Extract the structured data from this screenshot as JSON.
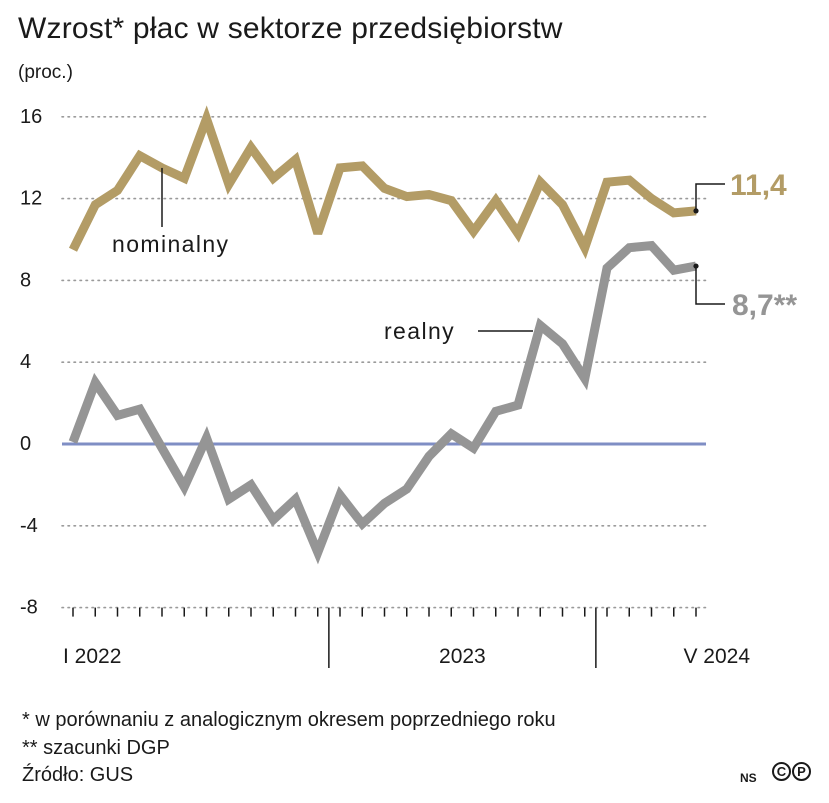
{
  "header": {
    "title": "Wzrost* płac w sektorze przedsiębiorstw",
    "unit": "(proc.)"
  },
  "footnotes": {
    "note1": "* w porównaniu z analogicznym okresem poprzedniego roku",
    "note2": "** szacunki DGP",
    "source": "Źródło: GUS"
  },
  "branding": {
    "ns": "NS",
    "c_symbol": "C",
    "p_symbol": "P"
  },
  "chart_data": {
    "type": "line",
    "x": [
      "2022-01",
      "2022-02",
      "2022-03",
      "2022-04",
      "2022-05",
      "2022-06",
      "2022-07",
      "2022-08",
      "2022-09",
      "2022-10",
      "2022-11",
      "2022-12",
      "2023-01",
      "2023-02",
      "2023-03",
      "2023-04",
      "2023-05",
      "2023-06",
      "2023-07",
      "2023-08",
      "2023-09",
      "2023-10",
      "2023-11",
      "2023-12",
      "2024-01",
      "2024-02",
      "2024-03",
      "2024-04",
      "2024-05"
    ],
    "x_tick_labels": [
      "I 2022",
      "2023",
      "V 2024"
    ],
    "ylim": [
      -8,
      16
    ],
    "yticks": [
      16,
      12,
      8,
      4,
      0,
      -4,
      -8
    ],
    "grid": true,
    "series": [
      {
        "name": "nominalny",
        "color": "#b39c66",
        "values": [
          9.5,
          11.7,
          12.4,
          14.1,
          13.5,
          13.0,
          15.9,
          12.7,
          14.5,
          13.0,
          13.9,
          10.3,
          13.5,
          13.6,
          12.5,
          12.1,
          12.2,
          11.9,
          10.4,
          11.9,
          10.3,
          12.8,
          11.7,
          9.6,
          12.8,
          12.9,
          12.0,
          11.3,
          11.4
        ]
      },
      {
        "name": "realny",
        "color": "#959595",
        "values": [
          0.1,
          3.0,
          1.4,
          1.7,
          -0.2,
          -2.1,
          0.3,
          -2.7,
          -2.0,
          -3.7,
          -2.7,
          -5.3,
          -2.5,
          -3.9,
          -2.9,
          -2.2,
          -0.6,
          0.5,
          -0.2,
          1.6,
          1.9,
          5.8,
          4.9,
          3.2,
          8.6,
          9.6,
          9.7,
          8.5,
          8.7
        ]
      }
    ],
    "end_labels": {
      "nominalny": "11,4",
      "realny": "8,7**"
    },
    "zero_line_color": "#7f8ec4"
  }
}
